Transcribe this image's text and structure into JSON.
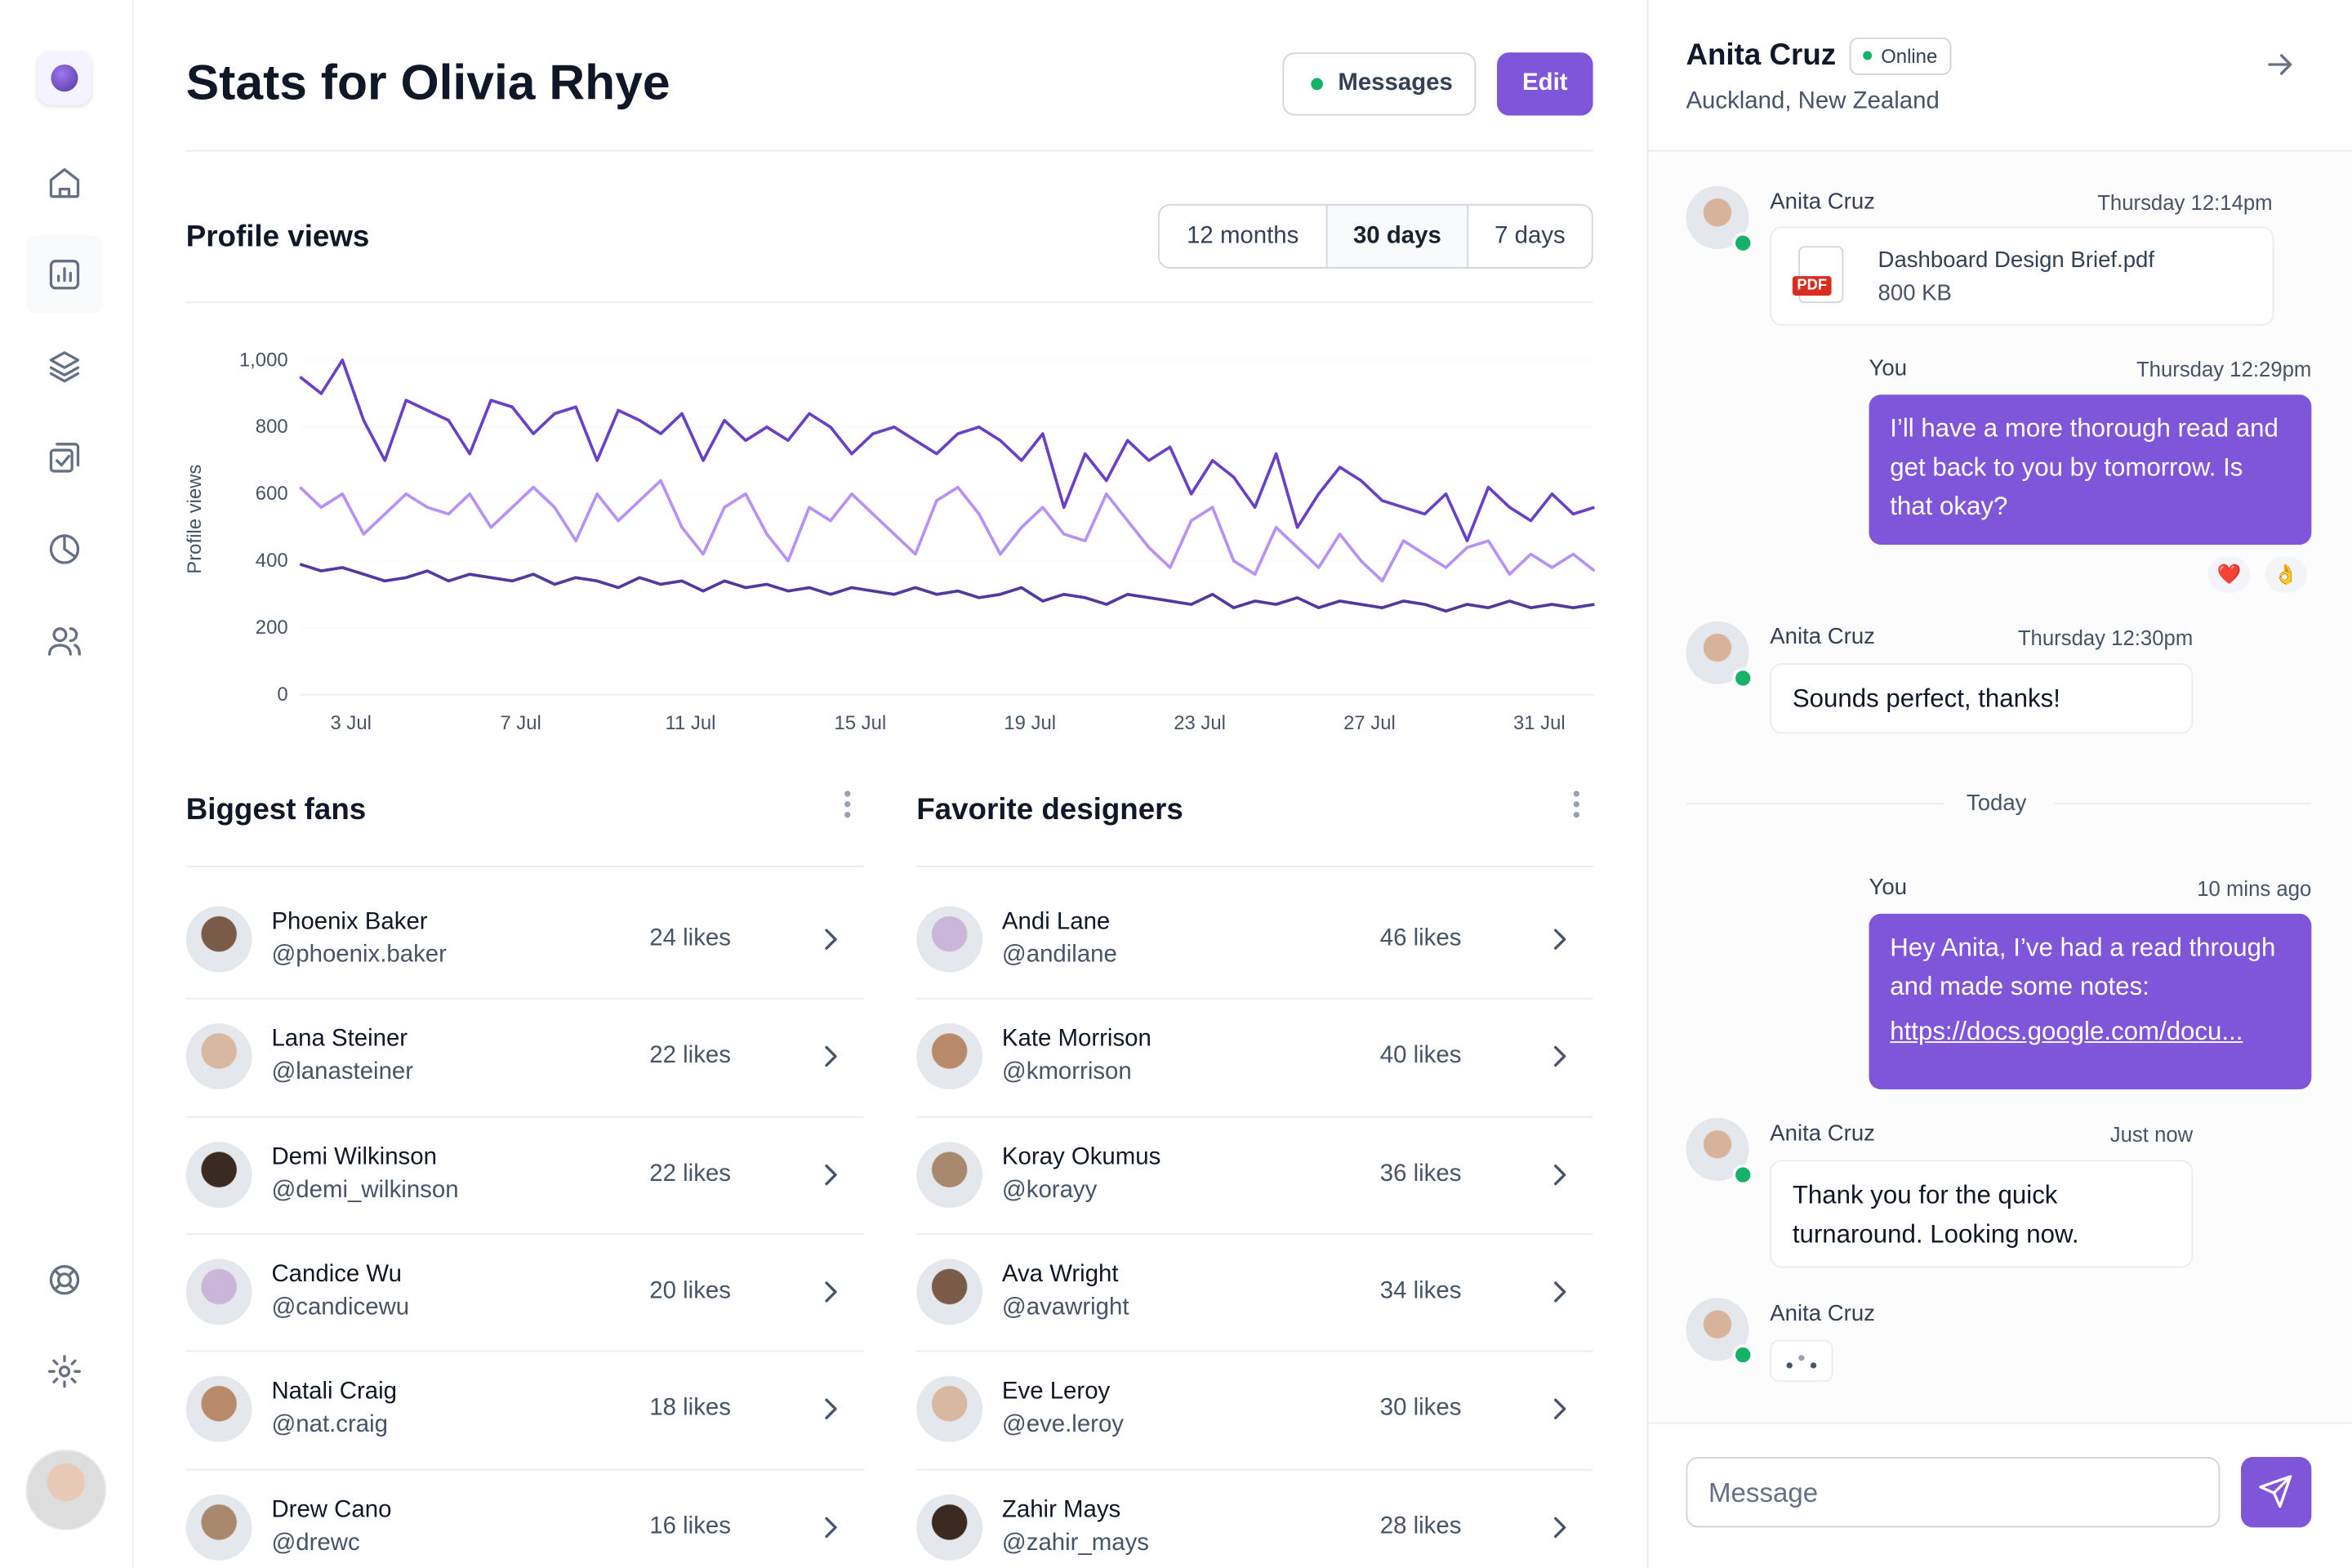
{
  "header": {
    "title": "Stats for Olivia Rhye",
    "messages": "Messages",
    "edit": "Edit"
  },
  "profile_views": {
    "title": "Profile views",
    "ranges": [
      "12 months",
      "30 days",
      "7 days"
    ]
  },
  "chart_data": {
    "type": "line",
    "y_label": "Profile views",
    "x": [
      1.8,
      2.3,
      2.8,
      3.3,
      3.8,
      4.3,
      4.8,
      5.3,
      5.8,
      6.3,
      6.8,
      7.3,
      7.8,
      8.3,
      8.8,
      9.3,
      9.8,
      10.3,
      10.8,
      11.3,
      11.8,
      12.3,
      12.8,
      13.3,
      13.8,
      14.3,
      14.8,
      15.3,
      15.8,
      16.3,
      16.8,
      17.3,
      17.8,
      18.3,
      18.8,
      19.3,
      19.8,
      20.3,
      20.8,
      21.3,
      21.8,
      22.3,
      22.8,
      23.3,
      23.8,
      24.3,
      24.8,
      25.3,
      25.8,
      26.3,
      26.8,
      27.3,
      27.8,
      28.3,
      28.8,
      29.3,
      29.8,
      30.3,
      30.8,
      31.3,
      31.8,
      32.3
    ],
    "series": [
      {
        "color": "#6941c6",
        "values": [
          950,
          900,
          1000,
          820,
          700,
          880,
          850,
          820,
          720,
          880,
          860,
          780,
          840,
          860,
          700,
          850,
          820,
          780,
          840,
          700,
          820,
          760,
          800,
          760,
          840,
          800,
          720,
          780,
          800,
          760,
          720,
          780,
          800,
          760,
          700,
          780,
          560,
          720,
          640,
          760,
          700,
          740,
          600,
          700,
          650,
          560,
          720,
          500,
          600,
          680,
          640,
          580,
          560,
          540,
          600,
          460,
          620,
          560,
          520,
          600,
          540,
          560
        ]
      },
      {
        "color": "#b692f6",
        "values": [
          620,
          560,
          600,
          480,
          540,
          600,
          560,
          540,
          600,
          500,
          560,
          620,
          560,
          460,
          600,
          520,
          580,
          640,
          500,
          420,
          560,
          600,
          480,
          400,
          560,
          520,
          600,
          540,
          480,
          420,
          580,
          620,
          540,
          420,
          500,
          560,
          480,
          460,
          600,
          520,
          440,
          380,
          520,
          560,
          400,
          360,
          500,
          440,
          380,
          480,
          400,
          340,
          460,
          420,
          380,
          440,
          460,
          360,
          420,
          380,
          420,
          370
        ]
      },
      {
        "color": "#53389e",
        "values": [
          390,
          370,
          380,
          360,
          340,
          350,
          370,
          340,
          360,
          350,
          340,
          360,
          330,
          350,
          340,
          320,
          350,
          330,
          340,
          310,
          340,
          320,
          330,
          310,
          320,
          300,
          320,
          310,
          300,
          320,
          300,
          310,
          290,
          300,
          320,
          280,
          300,
          290,
          270,
          300,
          290,
          280,
          270,
          300,
          260,
          280,
          270,
          290,
          260,
          280,
          270,
          260,
          280,
          270,
          250,
          270,
          260,
          280,
          260,
          270,
          260,
          270
        ]
      }
    ],
    "xlim": [
      1.8,
      32.3
    ],
    "xticks": [
      {
        "value": 3,
        "label": "3 Jul"
      },
      {
        "value": 7,
        "label": "7 Jul"
      },
      {
        "value": 11,
        "label": "11 Jul"
      },
      {
        "value": 15,
        "label": "15 Jul"
      },
      {
        "value": 19,
        "label": "19 Jul"
      },
      {
        "value": 23,
        "label": "23 Jul"
      },
      {
        "value": 27,
        "label": "27 Jul"
      },
      {
        "value": 31,
        "label": "31 Jul"
      }
    ],
    "ylim": [
      0,
      1000
    ],
    "yticks": [
      0,
      200,
      400,
      600,
      800,
      {
        "value": 1000,
        "label": "1,000"
      }
    ],
    "grid": true
  },
  "fans": {
    "title": "Biggest fans",
    "rows": [
      {
        "name": "Phoenix Baker",
        "handle": "@phoenix.baker",
        "likes": "24 likes"
      },
      {
        "name": "Lana Steiner",
        "handle": "@lanasteiner",
        "likes": "22 likes"
      },
      {
        "name": "Demi Wilkinson",
        "handle": "@demi_wilkinson",
        "likes": "22 likes"
      },
      {
        "name": "Candice Wu",
        "handle": "@candicewu",
        "likes": "20 likes"
      },
      {
        "name": "Natali Craig",
        "handle": "@nat.craig",
        "likes": "18 likes"
      },
      {
        "name": "Drew Cano",
        "handle": "@drewc",
        "likes": "16 likes"
      }
    ]
  },
  "designers": {
    "title": "Favorite designers",
    "rows": [
      {
        "name": "Andi Lane",
        "handle": "@andilane",
        "likes": "46 likes"
      },
      {
        "name": "Kate Morrison",
        "handle": "@kmorrison",
        "likes": "40 likes"
      },
      {
        "name": "Koray Okumus",
        "handle": "@korayy",
        "likes": "36 likes"
      },
      {
        "name": "Ava Wright",
        "handle": "@avawright",
        "likes": "34 likes"
      },
      {
        "name": "Eve Leroy",
        "handle": "@eve.leroy",
        "likes": "30 likes"
      },
      {
        "name": "Zahir Mays",
        "handle": "@zahir_mays",
        "likes": "28 likes"
      }
    ]
  },
  "chat": {
    "contact": "Anita Cruz",
    "status": "Online",
    "location": "Auckland, New Zealand",
    "messages": [
      {
        "sender": "Anita Cruz",
        "time": "Thursday 12:14pm",
        "file": "Dashboard Design Brief.pdf",
        "size": "800 KB",
        "file_type": "PDF"
      },
      {
        "sender": "You",
        "time": "Thursday 12:29pm",
        "text": "I’ll have a more thorough read and get back to you by tomorrow. Is that okay?",
        "reactions": [
          "❤️",
          "👌"
        ]
      },
      {
        "sender": "Anita Cruz",
        "time": "Thursday 12:30pm",
        "text": "Sounds perfect, thanks!"
      },
      {
        "sender": "You",
        "time": "10 mins ago",
        "text": "Hey Anita, I’ve had a read through and made some notes:",
        "link": "https://docs.google.com/docu..."
      },
      {
        "sender": "Anita Cruz",
        "time": "Just now",
        "text": "Thank you for the quick turnaround. Looking now."
      },
      {
        "sender": "Anita Cruz"
      }
    ],
    "divider": "Today",
    "placeholder": "Message"
  }
}
